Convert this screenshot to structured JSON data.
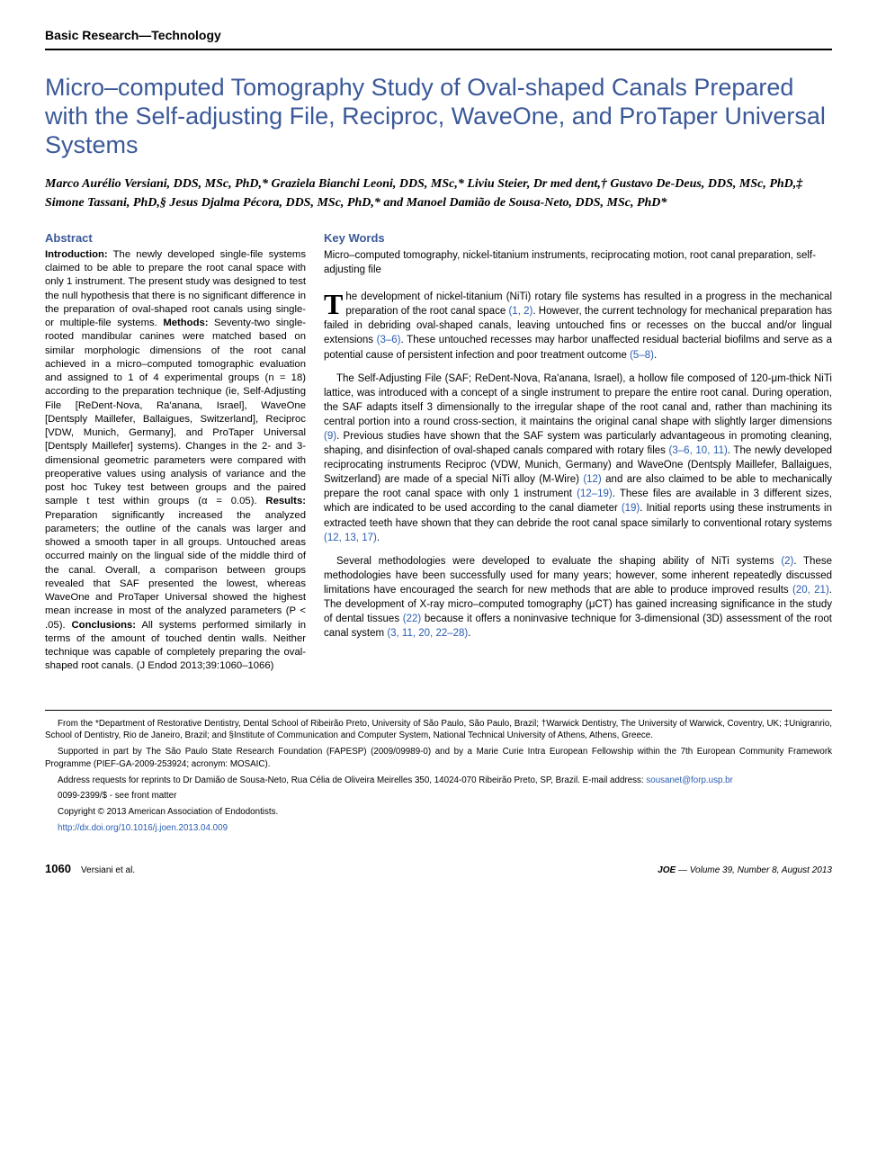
{
  "section_header": "Basic Research—Technology",
  "title": "Micro–computed Tomography Study of Oval-shaped Canals Prepared with the Self-adjusting File, Reciproc, WaveOne, and ProTaper Universal Systems",
  "authors_html": "Marco Aurélio Versiani, DDS, MSc, PhD,* Graziela Bianchi Leoni, DDS, MSc,* Liviu Steier, Dr med dent,† Gustavo De-Deus, DDS, MSc, PhD,‡ Simone Tassani, PhD,§ Jesus Djalma Pécora, DDS, MSc, PhD,* and Manoel Damião de Sousa-Neto, DDS, MSc, PhD*",
  "abstract_heading": "Abstract",
  "abstract": {
    "intro_label": "Introduction:",
    "intro": " The newly developed single-file systems claimed to be able to prepare the root canal space with only 1 instrument. The present study was designed to test the null hypothesis that there is no significant difference in the preparation of oval-shaped root canals using single- or multiple-file systems. ",
    "methods_label": "Methods:",
    "methods": " Seventy-two single-rooted mandibular canines were matched based on similar morphologic dimensions of the root canal achieved in a micro–computed tomographic evaluation and assigned to 1 of 4 experimental groups (n = 18) according to the preparation technique (ie, Self-Adjusting File [ReDent-Nova, Ra'anana, Israel], WaveOne [Dentsply Maillefer, Ballaigues, Switzerland], Reciproc [VDW, Munich, Germany], and ProTaper Universal [Dentsply Maillefer] systems). Changes in the 2- and 3-dimensional geometric parameters were compared with preoperative values using analysis of variance and the post hoc Tukey test between groups and the paired sample t test within groups (α = 0.05). ",
    "results_label": "Results:",
    "results": " Preparation significantly increased the analyzed parameters; the outline of the canals was larger and showed a smooth taper in all groups. Untouched areas occurred mainly on the lingual side of the middle third of the canal. Overall, a comparison between groups revealed that SAF presented the lowest, whereas WaveOne and ProTaper Universal showed the highest mean increase in most of the analyzed parameters (P < .05). ",
    "conclusions_label": "Conclusions:",
    "conclusions": " All systems performed similarly in terms of the amount of touched dentin walls. Neither technique was capable of completely preparing the oval-shaped root canals. (J Endod 2013;39:1060–1066)"
  },
  "keywords_heading": "Key Words",
  "keywords": "Micro–computed tomography, nickel-titanium instruments, reciprocating motion, root canal preparation, self-adjusting file",
  "body": {
    "p1_dropcap": "T",
    "p1": "he development of nickel-titanium (NiTi) rotary file systems has resulted in a progress in the mechanical preparation of the root canal space (1, 2). However, the current technology for mechanical preparation has failed in debriding oval-shaped canals, leaving untouched fins or recesses on the buccal and/or lingual extensions (3–6). These untouched recesses may harbor unaffected residual bacterial biofilms and serve as a potential cause of persistent infection and poor treatment outcome (5–8).",
    "p2": "The Self-Adjusting File (SAF; ReDent-Nova, Ra'anana, Israel), a hollow file composed of 120-μm-thick NiTi lattice, was introduced with a concept of a single instrument to prepare the entire root canal. During operation, the SAF adapts itself 3 dimensionally to the irregular shape of the root canal and, rather than machining its central portion into a round cross-section, it maintains the original canal shape with slightly larger dimensions (9). Previous studies have shown that the SAF system was particularly advantageous in promoting cleaning, shaping, and disinfection of oval-shaped canals compared with rotary files (3–6, 10, 11). The newly developed reciprocating instruments Reciproc (VDW, Munich, Germany) and WaveOne (Dentsply Maillefer, Ballaigues, Switzerland) are made of a special NiTi alloy (M-Wire) (12) and are also claimed to be able to mechanically prepare the root canal space with only 1 instrument (12–19). These files are available in 3 different sizes, which are indicated to be used according to the canal diameter (19). Initial reports using these instruments in extracted teeth have shown that they can debride the root canal space similarly to conventional rotary systems (12, 13, 17).",
    "p3": "Several methodologies were developed to evaluate the shaping ability of NiTi systems (2). These methodologies have been successfully used for many years; however, some inherent repeatedly discussed limitations have encouraged the search for new methods that are able to produce improved results (20, 21). The development of X-ray micro–computed tomography (μCT) has gained increasing significance in the study of dental tissues (22) because it offers a noninvasive technique for 3-dimensional (3D) assessment of the root canal system (3, 11, 20, 22–28)."
  },
  "refs": {
    "r1": "(1, 2)",
    "r2": "(3–6)",
    "r3": "(5–8)",
    "r4": "(9)",
    "r5": "(3–6, 10, 11)",
    "r6": "(12)",
    "r7": "(12–19)",
    "r8": "(19)",
    "r9": "(12, 13, 17)",
    "r10": "(2)",
    "r11": "(20, 21)",
    "r12": "(22)",
    "r13": "(3, 11, 20, 22–28)"
  },
  "footnotes": {
    "affil": "From the *Department of Restorative Dentistry, Dental School of Ribeirão Preto, University of São Paulo, São Paulo, Brazil; †Warwick Dentistry, The University of Warwick, Coventry, UK; ‡Unigranrio, School of Dentistry, Rio de Janeiro, Brazil; and §Institute of Communication and Computer System, National Technical University of Athens, Athens, Greece.",
    "support": "Supported in part by The São Paulo State Research Foundation (FAPESP) (2009/09989-0) and by a Marie Curie Intra European Fellowship within the 7th European Community Framework Programme (PIEF-GA-2009-253924; acronym: MOSAIC).",
    "address_pre": "Address requests for reprints to Dr Damião de Sousa-Neto, Rua Célia de Oliveira Meirelles 350, 14024-070 Ribeirão Preto, SP, Brazil. E-mail address: ",
    "email": "sousanet@forp.usp.br",
    "issn": "0099-2399/$ - see front matter",
    "copyright": "Copyright © 2013 American Association of Endodontists.",
    "doi": "http://dx.doi.org/10.1016/j.joen.2013.04.009"
  },
  "footer": {
    "page": "1060",
    "authors": "Versiani et al.",
    "journal": "JOE",
    "issue": " — Volume 39, Number 8, August 2013"
  },
  "colors": {
    "accent": "#3b5998",
    "link": "#2a5db0",
    "text": "#000000",
    "bg": "#ffffff"
  }
}
